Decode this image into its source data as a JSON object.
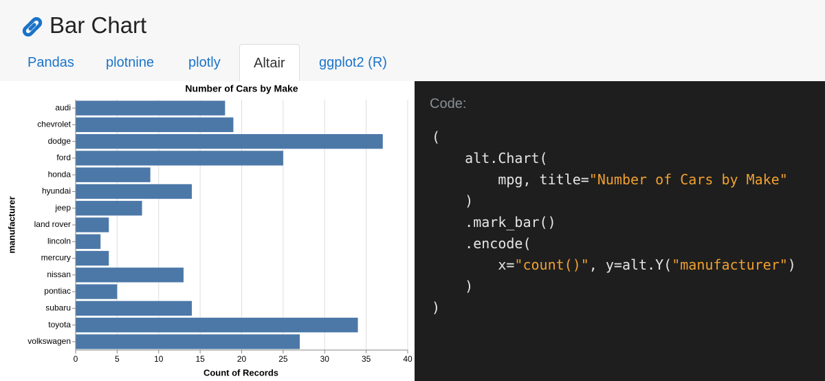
{
  "header": {
    "title": "Bar Chart"
  },
  "tabs": [
    {
      "label": "Pandas"
    },
    {
      "label": "plotnine"
    },
    {
      "label": "plotly"
    },
    {
      "label": "Altair",
      "active": true
    },
    {
      "label": "ggplot2 (R)"
    }
  ],
  "chart_data": {
    "type": "barh",
    "title": "Number of Cars by Make",
    "x_label": "Count of Records",
    "y_label": "manufacturer",
    "categories": [
      "audi",
      "chevrolet",
      "dodge",
      "ford",
      "honda",
      "hyundai",
      "jeep",
      "land rover",
      "lincoln",
      "mercury",
      "nissan",
      "pontiac",
      "subaru",
      "toyota",
      "volkswagen"
    ],
    "values": [
      18,
      19,
      37,
      25,
      9,
      14,
      8,
      4,
      3,
      4,
      13,
      5,
      14,
      34,
      27
    ],
    "color": "#4c78a8",
    "xlim": [
      0,
      40
    ],
    "xticks": [
      0,
      5,
      10,
      15,
      20,
      25,
      30,
      35,
      40
    ],
    "grid": true
  },
  "code": {
    "heading": "Code:",
    "lines": [
      [
        {
          "text": "(",
          "kind": "plain"
        }
      ],
      [
        {
          "text": "    alt.Chart(",
          "kind": "plain"
        }
      ],
      [
        {
          "text": "        mpg, title=",
          "kind": "plain"
        },
        {
          "text": "\"Number of Cars by Make\"",
          "kind": "string"
        }
      ],
      [
        {
          "text": "    )",
          "kind": "plain"
        }
      ],
      [
        {
          "text": "    .mark_bar()",
          "kind": "plain"
        }
      ],
      [
        {
          "text": "    .encode(",
          "kind": "plain"
        }
      ],
      [
        {
          "text": "        x=",
          "kind": "plain"
        },
        {
          "text": "\"count()\"",
          "kind": "string"
        },
        {
          "text": ", y=alt.Y(",
          "kind": "plain"
        },
        {
          "text": "\"manufacturer\"",
          "kind": "string"
        },
        {
          "text": ")",
          "kind": "plain"
        }
      ],
      [
        {
          "text": "    )",
          "kind": "plain"
        }
      ],
      [
        {
          "text": ")",
          "kind": "plain"
        }
      ]
    ]
  }
}
